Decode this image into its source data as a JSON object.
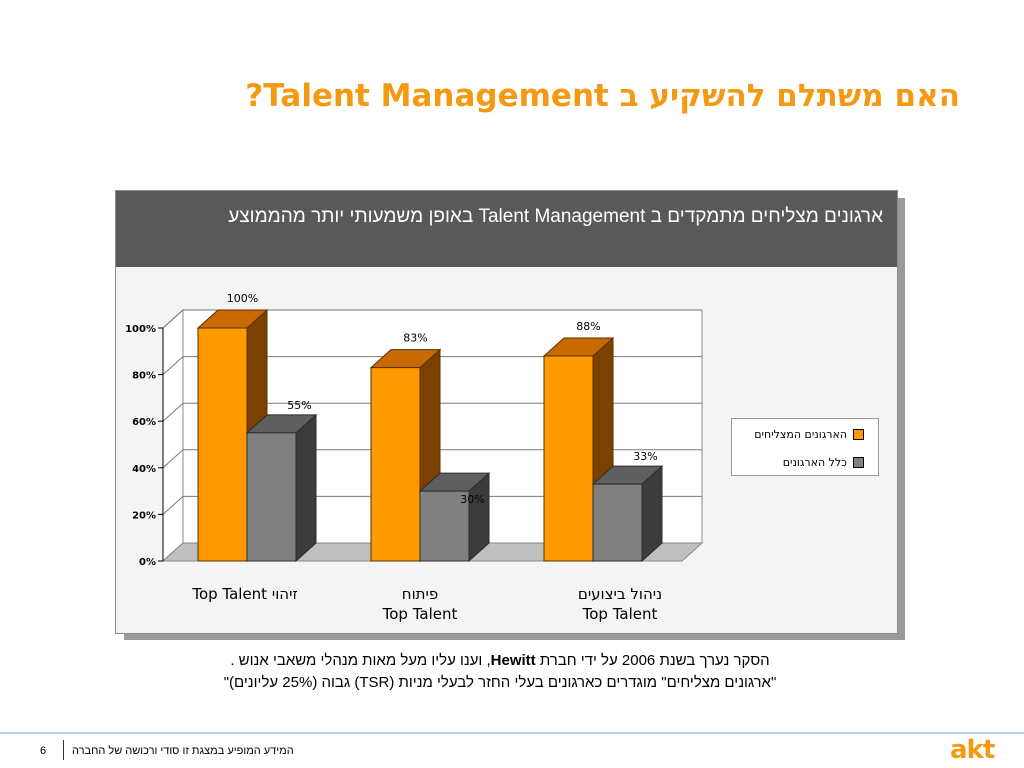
{
  "slide": {
    "title": "האם משתלם להשקיע ב Talent Management?",
    "panel_heading": "ארגונים מצליחים מתמקדים ב Talent Management באופן משמעותי יותר מהממוצע",
    "footnote_line1_pre": "הסקר נערך בשנת 2006 על ידי חברת ",
    "footnote_bold": "Hewitt",
    "footnote_line1_post": ", וענו עליו מעל מאות מנהלי משאבי אנוש .",
    "footnote_line2": "\"ארגונים מצליחים\" מוגדרים כארגונים בעלי החזר לבעלי מניות (TSR) גבוה (25% עליונים)\"",
    "page_number": "6",
    "footer_text": "המידע המופיע במצגת זו סודי ורכושה של החברה",
    "logo": "akt"
  },
  "colors": {
    "accent": "#f39a12",
    "series1": "#ff9900",
    "series2": "#808080",
    "heading_bg": "#595959"
  },
  "chart_data": {
    "type": "bar",
    "categories": [
      [
        "זיהוי",
        "Top Talent"
      ],
      [
        "פיתוח",
        "Top Talent"
      ],
      [
        "ניהול ביצועים",
        "Top Talent"
      ]
    ],
    "series": [
      {
        "name": "הארגונים המצליחים",
        "values": [
          100,
          83,
          88
        ],
        "labels": [
          "100%",
          "83%",
          "88%"
        ]
      },
      {
        "name": "כלל הארגונים",
        "values": [
          55,
          30,
          33
        ],
        "labels": [
          "55%",
          "30%",
          "33%"
        ]
      }
    ],
    "y_ticks": [
      "0%",
      "20%",
      "40%",
      "60%",
      "80%",
      "100%"
    ],
    "ylim": [
      0,
      100
    ],
    "legend_position": "right",
    "grid": true,
    "style": "3d"
  }
}
